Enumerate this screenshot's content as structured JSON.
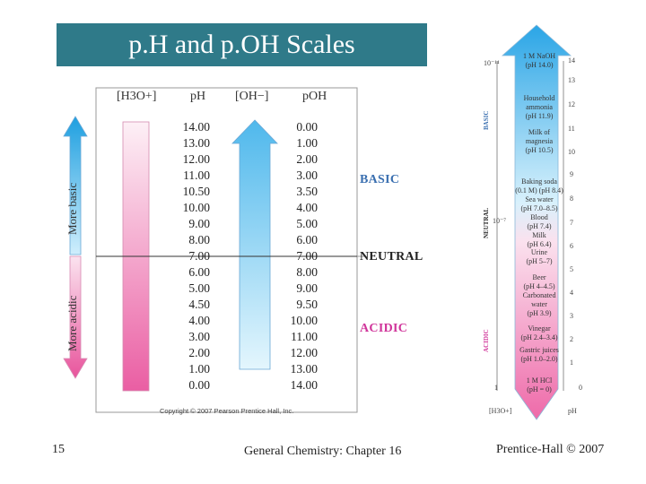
{
  "slide": {
    "title": "p.H and p.OH Scales",
    "number": "15",
    "footer_center": "General Chemistry: Chapter 16",
    "footer_right": "Prentice-Hall © 2007",
    "copyright": "Copyright © 2007 Pearson Prentice Hall, Inc."
  },
  "left_scale": {
    "headers": [
      "[H3O+]",
      "pH",
      "[OH−]",
      "pOH"
    ],
    "ph_values": [
      "14.00",
      "13.00",
      "12.00",
      "11.00",
      "10.50",
      "10.00",
      "9.00",
      "8.00",
      "7.00",
      "6.00",
      "5.00",
      "4.50",
      "4.00",
      "3.00",
      "2.00",
      "1.00",
      "0.00"
    ],
    "poh_values": [
      "0.00",
      "1.00",
      "2.00",
      "3.00",
      "3.50",
      "4.00",
      "5.00",
      "6.00",
      "7.00",
      "8.00",
      "9.00",
      "9.50",
      "10.00",
      "11.00",
      "12.00",
      "13.00",
      "14.00"
    ],
    "arrow_labels": {
      "up": "More basic",
      "down": "More acidic"
    },
    "zones": {
      "basic": "BASIC",
      "neutral": "NEUTRAL",
      "acidic": "ACIDIC"
    }
  },
  "right_scale": {
    "substances": [
      {
        "lines": [
          "1 M NaOH",
          "(pH 14.0)"
        ]
      },
      {
        "lines": [
          "Household",
          "ammonia",
          "(pH 11.9)"
        ]
      },
      {
        "lines": [
          "Milk of",
          "magnesia",
          "(pH 10.5)"
        ]
      },
      {
        "lines": [
          "Baking soda",
          "(0.1 M) (pH 8.4)",
          "Sea water",
          "(pH 7.0–8.5)"
        ]
      },
      {
        "lines": [
          "Blood",
          "(pH 7.4)",
          "Milk",
          "(pH 6.4)"
        ]
      },
      {
        "lines": [
          "Urine",
          "(pH 5–7)"
        ]
      },
      {
        "lines": [
          "Beer",
          "(pH 4–4.5)",
          "Carbonated",
          "water",
          "(pH 3.9)"
        ]
      },
      {
        "lines": [
          "Vinegar",
          "(pH 2.4–3.4)"
        ]
      },
      {
        "lines": [
          "Gastric juices",
          "(pH 1.0–2.0)"
        ]
      },
      {
        "lines": [
          "1 M HCl",
          "(pH = 0)"
        ]
      }
    ],
    "ph_ticks": [
      "14",
      "13",
      "12",
      "11",
      "10",
      "9",
      "8",
      "7",
      "6",
      "5",
      "4",
      "3",
      "2",
      "1",
      "0"
    ],
    "left_labels": {
      "top": "10⁻¹⁴",
      "mid": "10⁻⁷",
      "bottom": "1"
    },
    "axis_labels": {
      "left": "[H3O+]",
      "right": "pH"
    },
    "side_labels": {
      "basic": "BASIC",
      "neutral": "NEUTRAL",
      "acidic": "ACIDIC"
    }
  },
  "colors": {
    "title_bar": "#2f7a89",
    "basic": "#3a6fb0",
    "acidic": "#d0349a",
    "neutral": "#222222"
  }
}
